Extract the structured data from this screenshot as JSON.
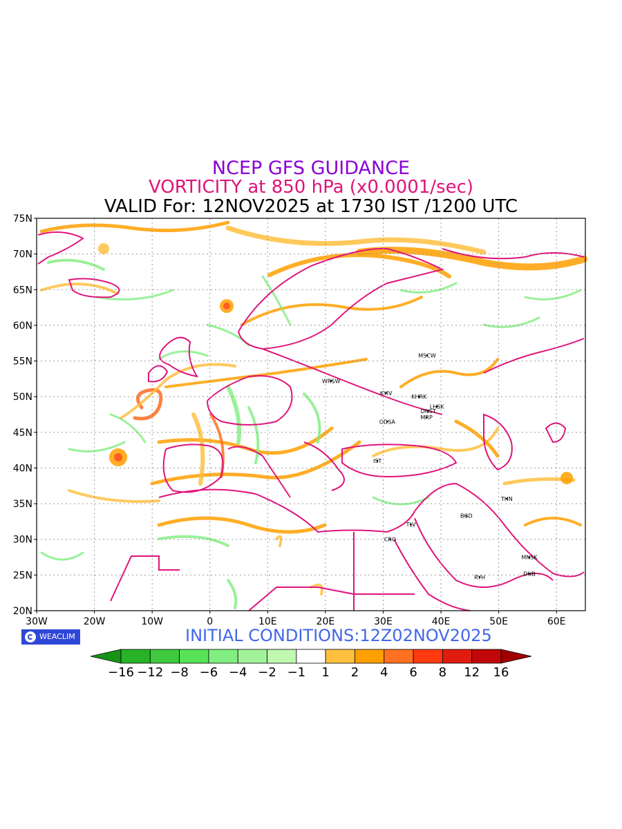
{
  "header": {
    "line1": "NCEP GFS GUIDANCE",
    "line2": "VORTICITY at 850 hPa (x0.0001/sec)",
    "line3": "VALID For: 12NOV2025 at 1730 IST /1200 UTC"
  },
  "map": {
    "lon_range": [
      -30,
      65
    ],
    "lat_range": [
      20,
      75
    ],
    "lon_ticks": [
      "30W",
      "20W",
      "10W",
      "0",
      "10E",
      "20E",
      "30E",
      "40E",
      "50E",
      "60E"
    ],
    "lat_ticks": [
      "75N",
      "70N",
      "65N",
      "60N",
      "55N",
      "50N",
      "45N",
      "40N",
      "35N",
      "30N",
      "25N",
      "20N"
    ],
    "grid": "dotted",
    "cities": [
      {
        "name": "MSCW",
        "lon": 37.6,
        "lat": 55.8
      },
      {
        "name": "WRSW",
        "lon": 21.0,
        "lat": 52.2
      },
      {
        "name": "KYIV",
        "lon": 30.5,
        "lat": 50.5
      },
      {
        "name": "KHRK",
        "lon": 36.2,
        "lat": 50.0
      },
      {
        "name": "LHSK",
        "lon": 39.3,
        "lat": 48.6
      },
      {
        "name": "DNST",
        "lon": 37.8,
        "lat": 48.0
      },
      {
        "name": "MRP",
        "lon": 37.5,
        "lat": 47.1
      },
      {
        "name": "ODSA",
        "lon": 30.7,
        "lat": 46.5
      },
      {
        "name": "IST",
        "lon": 29.0,
        "lat": 41.0
      },
      {
        "name": "THN",
        "lon": 51.4,
        "lat": 35.7
      },
      {
        "name": "BGD",
        "lon": 44.4,
        "lat": 33.3
      },
      {
        "name": "TLV",
        "lon": 34.8,
        "lat": 32.1
      },
      {
        "name": "CRO",
        "lon": 31.2,
        "lat": 30.0
      },
      {
        "name": "MNSK",
        "lon": 55.3,
        "lat": 27.5
      },
      {
        "name": "DUB",
        "lon": 55.3,
        "lat": 25.2
      },
      {
        "name": "RYH",
        "lon": 46.7,
        "lat": 24.7
      }
    ]
  },
  "logo": {
    "text": "WEACLIM"
  },
  "initial_conditions": "INITIAL CONDITIONS:12Z02NOV2025",
  "colorbar": {
    "labels": [
      "−16",
      "−12",
      "−8",
      "−6",
      "−4",
      "−2",
      "−1",
      "1",
      "2",
      "4",
      "6",
      "8",
      "12",
      "16"
    ],
    "colors": [
      "#169416",
      "#27b227",
      "#3ec93e",
      "#58e258",
      "#80ee80",
      "#a2f29a",
      "#c0f8b0",
      "#ffffff",
      "#ffc040",
      "#ffa000",
      "#ff7020",
      "#ff3a10",
      "#e01c10",
      "#c00808",
      "#a00000"
    ],
    "lower_arrow_color": "#169416",
    "upper_arrow_color": "#a00000"
  }
}
